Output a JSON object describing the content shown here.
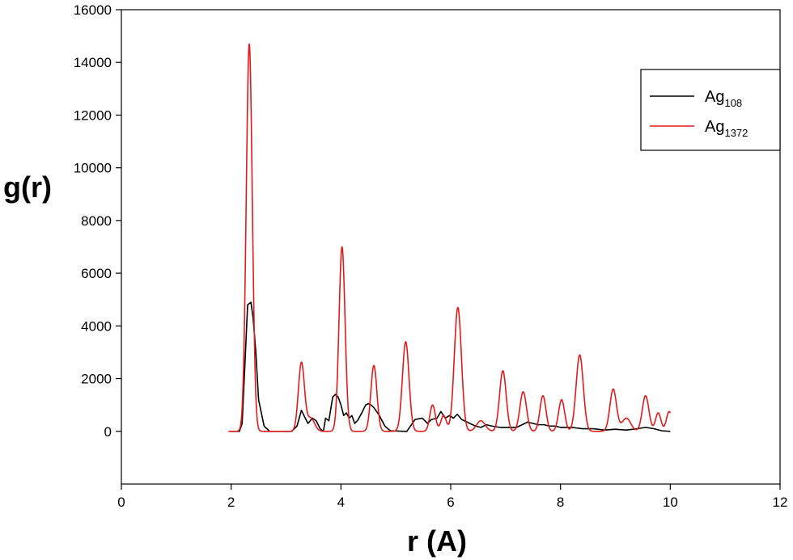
{
  "chart_data": {
    "type": "line",
    "title": "",
    "xlabel": "r (A)",
    "ylabel": "g(r)",
    "xlim": [
      0,
      12
    ],
    "ylim": [
      -2000,
      16000
    ],
    "xticks": [
      0,
      2,
      4,
      6,
      8,
      10,
      12
    ],
    "yticks": [
      0,
      2000,
      4000,
      6000,
      8000,
      10000,
      12000,
      14000,
      16000
    ],
    "grid": false,
    "legend": {
      "position": "top-right",
      "entries": [
        {
          "base": "Ag",
          "sub": "108"
        },
        {
          "base": "Ag",
          "sub": "1372"
        }
      ]
    },
    "series": [
      {
        "name": "Ag108",
        "color": "#000000",
        "points": [
          [
            2.0,
            0
          ],
          [
            2.15,
            0
          ],
          [
            2.2,
            300
          ],
          [
            2.25,
            2500
          ],
          [
            2.3,
            4800
          ],
          [
            2.36,
            4900
          ],
          [
            2.4,
            4300
          ],
          [
            2.45,
            3000
          ],
          [
            2.5,
            1200
          ],
          [
            2.6,
            200
          ],
          [
            2.7,
            0
          ],
          [
            3.1,
            0
          ],
          [
            3.2,
            200
          ],
          [
            3.28,
            800
          ],
          [
            3.35,
            500
          ],
          [
            3.4,
            300
          ],
          [
            3.48,
            500
          ],
          [
            3.55,
            400
          ],
          [
            3.62,
            100
          ],
          [
            3.68,
            0
          ],
          [
            3.72,
            500
          ],
          [
            3.78,
            400
          ],
          [
            3.85,
            1300
          ],
          [
            3.9,
            1400
          ],
          [
            3.95,
            1300
          ],
          [
            4.0,
            1000
          ],
          [
            4.05,
            600
          ],
          [
            4.1,
            700
          ],
          [
            4.15,
            500
          ],
          [
            4.2,
            600
          ],
          [
            4.25,
            300
          ],
          [
            4.3,
            400
          ],
          [
            4.38,
            700
          ],
          [
            4.45,
            1000
          ],
          [
            4.5,
            1050
          ],
          [
            4.55,
            1000
          ],
          [
            4.6,
            900
          ],
          [
            4.7,
            600
          ],
          [
            4.8,
            200
          ],
          [
            4.9,
            20
          ],
          [
            5.2,
            0
          ],
          [
            5.35,
            450
          ],
          [
            5.48,
            500
          ],
          [
            5.58,
            300
          ],
          [
            5.65,
            450
          ],
          [
            5.75,
            500
          ],
          [
            5.82,
            750
          ],
          [
            5.9,
            500
          ],
          [
            5.98,
            600
          ],
          [
            6.05,
            500
          ],
          [
            6.12,
            650
          ],
          [
            6.2,
            450
          ],
          [
            6.35,
            300
          ],
          [
            6.45,
            200
          ],
          [
            6.55,
            150
          ],
          [
            6.65,
            250
          ],
          [
            6.75,
            200
          ],
          [
            6.9,
            150
          ],
          [
            7.0,
            150
          ],
          [
            7.1,
            150
          ],
          [
            7.2,
            150
          ],
          [
            7.3,
            250
          ],
          [
            7.4,
            350
          ],
          [
            7.5,
            300
          ],
          [
            7.6,
            250
          ],
          [
            7.7,
            250
          ],
          [
            7.8,
            200
          ],
          [
            7.9,
            200
          ],
          [
            8.0,
            150
          ],
          [
            8.2,
            150
          ],
          [
            8.4,
            100
          ],
          [
            8.6,
            100
          ],
          [
            8.8,
            50
          ],
          [
            9.0,
            80
          ],
          [
            9.2,
            50
          ],
          [
            9.4,
            100
          ],
          [
            9.55,
            150
          ],
          [
            9.7,
            100
          ],
          [
            9.85,
            20
          ],
          [
            10.0,
            0
          ]
        ]
      },
      {
        "name": "Ag1372",
        "color": "#e31a1c",
        "peaks": [
          [
            2.33,
            14700,
            0.055
          ],
          [
            3.28,
            2600,
            0.055
          ],
          [
            3.45,
            500,
            0.07
          ],
          [
            4.02,
            7000,
            0.055
          ],
          [
            4.6,
            2500,
            0.055
          ],
          [
            5.18,
            3400,
            0.06
          ],
          [
            5.67,
            1000,
            0.05
          ],
          [
            5.87,
            600,
            0.05
          ],
          [
            6.13,
            4700,
            0.065
          ],
          [
            6.55,
            400,
            0.08
          ],
          [
            6.95,
            2300,
            0.06
          ],
          [
            7.32,
            1500,
            0.06
          ],
          [
            7.68,
            1350,
            0.055
          ],
          [
            8.02,
            1200,
            0.055
          ],
          [
            8.35,
            2900,
            0.065
          ],
          [
            8.96,
            1600,
            0.06
          ],
          [
            9.2,
            500,
            0.08
          ],
          [
            9.55,
            1350,
            0.06
          ],
          [
            9.78,
            700,
            0.05
          ],
          [
            9.98,
            750,
            0.05
          ]
        ],
        "x_start": 1.95,
        "x_end": 10.0
      }
    ]
  }
}
